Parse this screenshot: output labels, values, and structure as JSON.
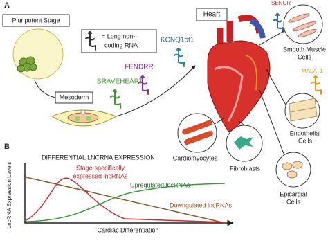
{
  "panel_a": {
    "label": "A",
    "pluripotent": "Pluripotent Stage",
    "legend": [
      "= Long non-",
      "coding RNA"
    ],
    "mesoderm": "Mesoderm",
    "heart": "Heart",
    "lncrnas": {
      "braveheart": "BRAVEHEART",
      "fendrr": "FENDRR",
      "kcnq1ot1": "KCNQ1ot1",
      "sencr": "SENCR",
      "malat1": "MALAT1"
    },
    "cells": {
      "smooth_muscle": [
        "Smooth Muscle",
        "Cells"
      ],
      "endothelial": [
        "Endothelial",
        "Cells"
      ],
      "epicardial": [
        "Epicardial",
        "Cells"
      ],
      "cardiomyocytes": "Cardiomyocytes",
      "fibroblasts": "Fibroblasts"
    }
  },
  "panel_b": {
    "label": "B",
    "title": "DIFFERENTIAL LNCRNA EXPRESSION",
    "y_axis": "LncRNA Expression Levels",
    "x_axis": "Cardiac Differentiation",
    "stage_specific": [
      "Stage-specifically",
      "expressed lncRNAs"
    ],
    "upregulated": "Upregulated lncRNAs",
    "downregulated": "Downgulated lncRNAs"
  }
}
